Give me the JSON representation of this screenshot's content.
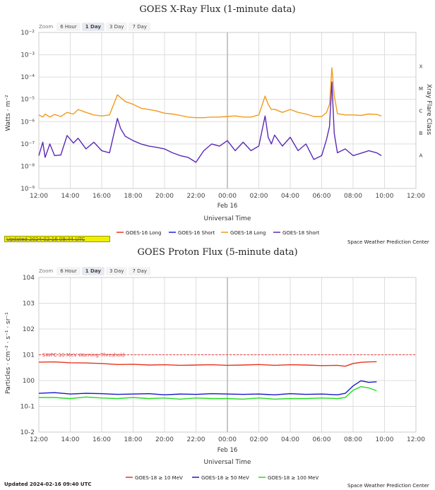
{
  "colors": {
    "goes16_long": "#e8341c",
    "goes16_short": "#2020e0",
    "goes18_long": "#f39a1c",
    "goes18_short": "#5a2ab8",
    "p10": "#e8341c",
    "p50": "#1818cc",
    "p100": "#22dd22",
    "threshold": "#e84040",
    "grid": "#dddddd",
    "midline": "#bbbbbb"
  },
  "xray": {
    "title": "GOES X-Ray Flux (1-minute data)",
    "zoom_label": "Zoom",
    "zoom_options": [
      "6 Hour",
      "1 Day",
      "3 Day",
      "7 Day"
    ],
    "zoom_selected": "1 Day",
    "ylabel": "Watts · m⁻²",
    "xlabel": "Universal Time",
    "right_label": "Xray Flare Class",
    "y_ticks": [
      "10⁻²",
      "10⁻³",
      "10⁻⁴",
      "10⁻⁵",
      "10⁻⁶",
      "10⁻⁷",
      "10⁻⁸",
      "10⁻⁹"
    ],
    "class_labels": [
      "X",
      "M",
      "C",
      "B",
      "A"
    ],
    "x_ticks": [
      "12:00",
      "14:00",
      "16:00",
      "18:00",
      "20:00",
      "22:00",
      "00:00",
      "02:00",
      "04:00",
      "06:00",
      "08:00",
      "10:00",
      "12:00"
    ],
    "date_label": "Feb 16",
    "legend": [
      "GOES-16 Long",
      "GOES-16 Short",
      "GOES-18 Long",
      "GOES-18 Short"
    ],
    "updated": "Updated 2024-02-16 09:44 UTC",
    "credit": "Space Weather Prediction Center"
  },
  "proton": {
    "title": "GOES Proton Flux (5-minute data)",
    "zoom_label": "Zoom",
    "zoom_options": [
      "6 Hour",
      "1 Day",
      "3 Day",
      "7 Day"
    ],
    "zoom_selected": "1 Day",
    "ylabel": "Particles · cm⁻² · s⁻¹ · sr⁻¹",
    "xlabel": "Universal Time",
    "y_ticks": [
      "104",
      "103",
      "102",
      "101",
      "100",
      "10-1",
      "10-2"
    ],
    "x_ticks": [
      "12:00",
      "14:00",
      "16:00",
      "18:00",
      "20:00",
      "22:00",
      "00:00",
      "02:00",
      "04:00",
      "06:00",
      "08:00",
      "10:00",
      "12:00"
    ],
    "date_label": "Feb 16",
    "threshold_label": "SWPC 10 MeV Warning Threshold",
    "legend": [
      "GOES-18 ≥ 10 MeV",
      "GOES-18 ≥ 50 MeV",
      "GOES-18 ≥ 100 MeV"
    ],
    "updated": "Updated 2024-02-16 09:40 UTC",
    "credit": "Space Weather Prediction Center"
  },
  "chart_data": [
    {
      "type": "line",
      "title": "GOES X-Ray Flux (1-minute data)",
      "xlabel": "Universal Time",
      "ylabel": "Watts · m⁻²",
      "scale": "log",
      "ylim": [
        1e-09,
        0.01
      ],
      "xlim_hours": [
        0,
        24
      ],
      "x_hours_from_1200": [
        0,
        0.25,
        0.4,
        0.7,
        1,
        1.4,
        1.8,
        2.2,
        2.5,
        3,
        3.5,
        4,
        4.5,
        5,
        5.2,
        5.5,
        6,
        6.5,
        7,
        7.5,
        8,
        8.5,
        9,
        9.5,
        10,
        10.5,
        11,
        11.5,
        12,
        12.5,
        13,
        13.5,
        14,
        14.4,
        14.6,
        14.8,
        15,
        15.5,
        16,
        16.5,
        17,
        17.5,
        18,
        18.3,
        18.5,
        18.65,
        18.8,
        19,
        19.5,
        20,
        20.5,
        21,
        21.5,
        21.8
      ],
      "series": [
        {
          "name": "GOES-18 Long",
          "values": [
            2e-06,
            1.6e-06,
            2.2e-06,
            1.6e-06,
            2.1e-06,
            1.7e-06,
            2.6e-06,
            2.2e-06,
            3.5e-06,
            2.6e-06,
            2e-06,
            1.8e-06,
            2e-06,
            1.6e-05,
            1.2e-05,
            8e-06,
            6e-06,
            4e-06,
            3.5e-06,
            3e-06,
            2.4e-06,
            2.2e-06,
            1.9e-06,
            1.6e-06,
            1.5e-06,
            1.5e-06,
            1.6e-06,
            1.6e-06,
            1.7e-06,
            1.8e-06,
            1.6e-06,
            1.6e-06,
            2e-06,
            1.4e-05,
            6e-06,
            3.5e-06,
            3.6e-06,
            2.6e-06,
            3.5e-06,
            2.6e-06,
            2.2e-06,
            1.7e-06,
            1.7e-06,
            2.5e-06,
            6e-06,
            0.00026,
            1.5e-05,
            2.3e-06,
            2e-06,
            2e-06,
            1.9e-06,
            2.2e-06,
            2.1e-06,
            1.8e-06
          ]
        },
        {
          "name": "GOES-18 Short",
          "values": [
            3e-08,
            1.2e-07,
            2.5e-08,
            1e-07,
            3e-08,
            3.2e-08,
            2.4e-07,
            1.1e-07,
            1.8e-07,
            6e-08,
            1.2e-07,
            5e-08,
            4e-08,
            1.4e-06,
            5e-07,
            2.2e-07,
            1.4e-07,
            1e-07,
            8e-08,
            7e-08,
            6e-08,
            4e-08,
            3e-08,
            2.5e-08,
            1.5e-08,
            5e-08,
            1e-07,
            8e-08,
            1.4e-07,
            5e-08,
            1.2e-07,
            5e-08,
            8e-08,
            1.8e-06,
            2e-07,
            1e-07,
            2.5e-07,
            8e-08,
            2e-07,
            5e-08,
            1e-07,
            2e-08,
            3e-08,
            1.5e-07,
            6e-07,
            6e-05,
            3e-07,
            4e-08,
            6e-08,
            3e-08,
            3.8e-08,
            5e-08,
            4e-08,
            3e-08
          ]
        }
      ]
    },
    {
      "type": "line",
      "title": "GOES Proton Flux (5-minute data)",
      "xlabel": "Universal Time",
      "ylabel": "Particles · cm⁻² · s⁻¹ · sr⁻¹",
      "scale": "log",
      "ylim": [
        0.01,
        10000
      ],
      "xlim_hours": [
        0,
        24
      ],
      "threshold": 10,
      "threshold_label": "SWPC 10 MeV Warning Threshold",
      "x_hours_from_1200": [
        0,
        1,
        2,
        3,
        4,
        5,
        6,
        7,
        8,
        9,
        10,
        11,
        12,
        13,
        14,
        15,
        16,
        17,
        18,
        19,
        19.5,
        20,
        20.5,
        21,
        21.5
      ],
      "series": [
        {
          "name": "GOES-18 ≥ 10 MeV",
          "values": [
            5.2,
            5.3,
            4.9,
            4.8,
            4.6,
            4.2,
            4.3,
            4.0,
            4.1,
            3.9,
            4.0,
            4.1,
            3.9,
            4.0,
            4.2,
            3.9,
            4.1,
            4.0,
            3.8,
            3.9,
            3.6,
            4.6,
            5.1,
            5.3,
            5.4
          ]
        },
        {
          "name": "GOES-18 ≥ 50 MeV",
          "values": [
            0.32,
            0.34,
            0.3,
            0.32,
            0.31,
            0.29,
            0.3,
            0.31,
            0.28,
            0.3,
            0.29,
            0.31,
            0.3,
            0.29,
            0.3,
            0.28,
            0.31,
            0.29,
            0.3,
            0.28,
            0.32,
            0.62,
            0.98,
            0.85,
            0.9
          ]
        },
        {
          "name": "GOES-18 ≥ 100 MeV",
          "values": [
            0.22,
            0.22,
            0.2,
            0.23,
            0.21,
            0.2,
            0.22,
            0.2,
            0.21,
            0.19,
            0.21,
            0.2,
            0.2,
            0.19,
            0.21,
            0.19,
            0.2,
            0.2,
            0.21,
            0.2,
            0.22,
            0.42,
            0.58,
            0.52,
            0.4
          ]
        }
      ]
    }
  ]
}
